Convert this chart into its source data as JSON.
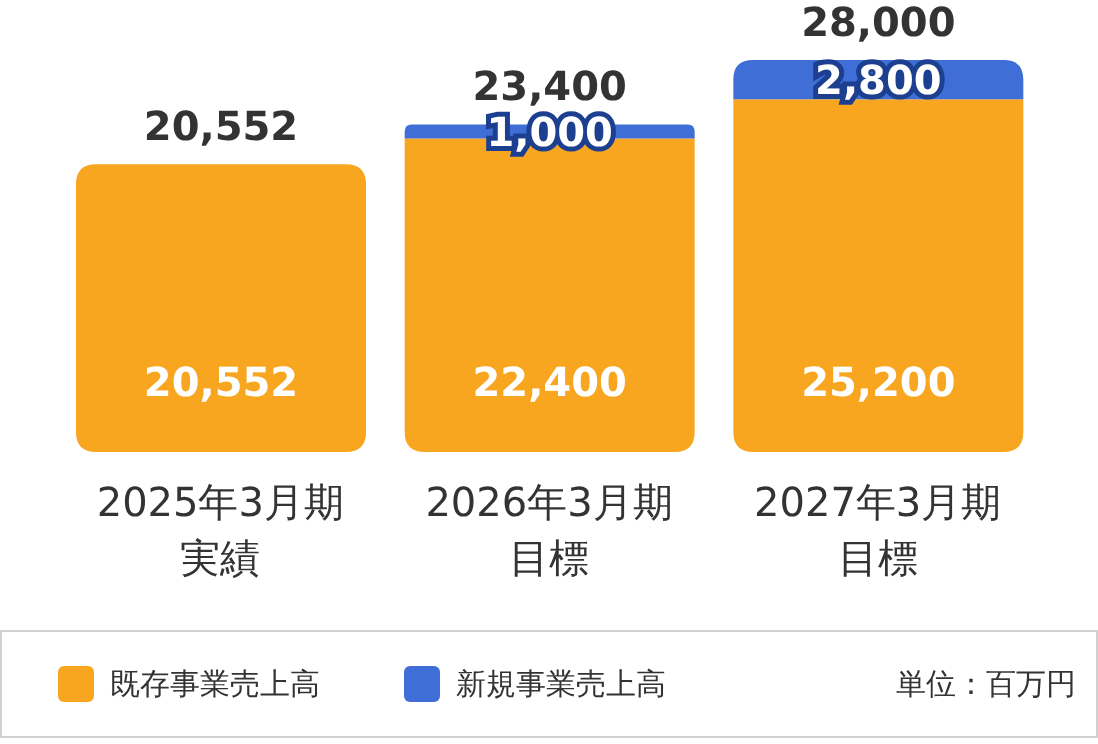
{
  "chart_data": {
    "type": "bar",
    "stacked": true,
    "categories": [
      "2025年3月期実績",
      "2026年3月期目標",
      "2027年3月期目標"
    ],
    "series": [
      {
        "name": "既存事業売上高",
        "color": "#f8a620",
        "values": [
          20552,
          22400,
          25200
        ],
        "value_labels": [
          "20,552",
          "22,400",
          "25,200"
        ]
      },
      {
        "name": "新規事業売上高",
        "color": "#3f6ed6",
        "values": [
          null,
          1000,
          2800
        ],
        "value_labels": [
          null,
          "1,000",
          "2,800"
        ]
      }
    ],
    "totals": [
      "20,552",
      "23,400",
      "28,000"
    ],
    "legend": "bottom",
    "annotations": [
      "単位：百万円"
    ]
  }
}
